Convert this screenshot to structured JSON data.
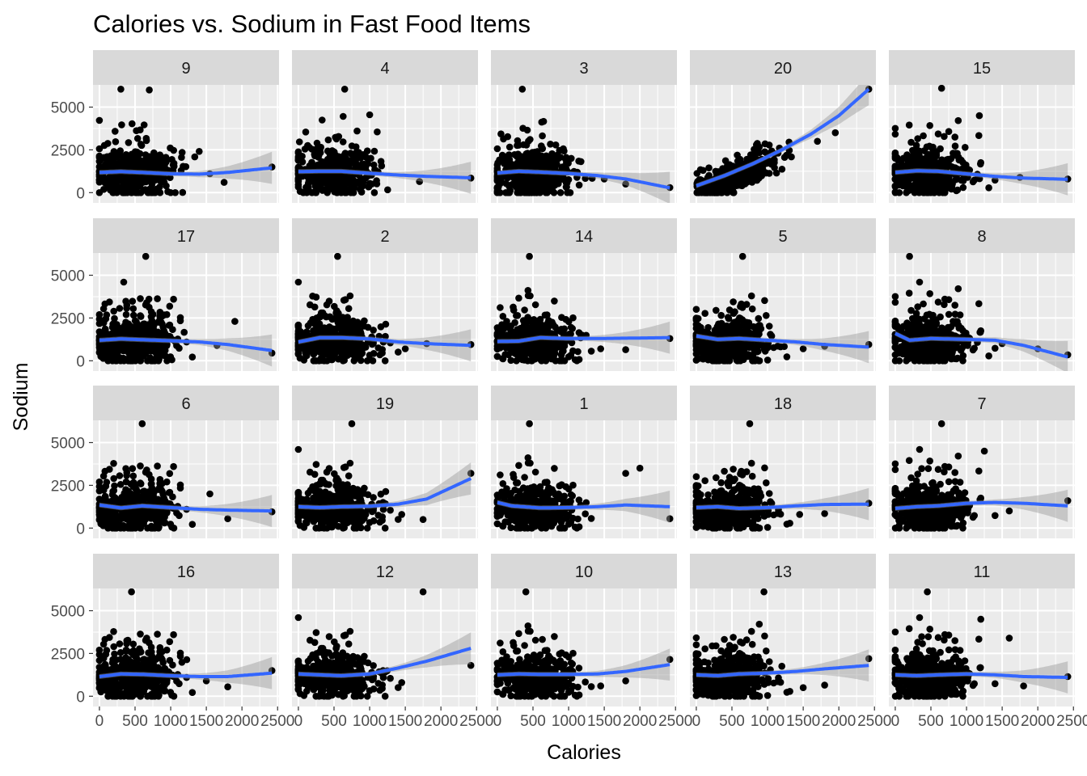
{
  "chart_data": {
    "type": "scatter",
    "title": "Calories vs. Sodium in Fast Food Items",
    "xlabel": "Calories",
    "ylabel": "Sodium",
    "xlim": [
      -90,
      2520
    ],
    "ylim": [
      -600,
      6300
    ],
    "x_ticks": [
      0,
      500,
      1000,
      1500,
      2000,
      2500
    ],
    "y_ticks": [
      0,
      2500,
      5000
    ],
    "x_tick_labels": [
      "0",
      "500",
      "1000",
      "1500",
      "2000",
      "2500"
    ],
    "y_tick_labels": [
      "0",
      "2500",
      "5000"
    ],
    "grid": true,
    "smooth": "loess with confidence band",
    "colors": {
      "panel_bg": "#ebebeb",
      "strip_bg": "#d9d9d9",
      "grid": "#ffffff",
      "points": "#000000",
      "smooth": "#3366ff",
      "band": "#999999"
    },
    "facets": [
      {
        "label": "9",
        "smooth": [
          [
            0,
            1180
          ],
          [
            300,
            1230
          ],
          [
            600,
            1180
          ],
          [
            1000,
            1100
          ],
          [
            1400,
            1080
          ],
          [
            1800,
            1180
          ],
          [
            2420,
            1450
          ]
        ],
        "outliers": [
          [
            700,
            6000
          ],
          [
            300,
            6050
          ],
          [
            1550,
            1100
          ],
          [
            1750,
            600
          ],
          [
            2420,
            1500
          ]
        ]
      },
      {
        "label": "4",
        "smooth": [
          [
            0,
            1230
          ],
          [
            300,
            1250
          ],
          [
            600,
            1250
          ],
          [
            1000,
            1130
          ],
          [
            1400,
            1030
          ],
          [
            1800,
            950
          ],
          [
            2420,
            870
          ]
        ],
        "outliers": [
          [
            650,
            6050
          ],
          [
            1000,
            4550
          ],
          [
            1700,
            650
          ],
          [
            2420,
            850
          ]
        ]
      },
      {
        "label": "3",
        "smooth": [
          [
            0,
            1150
          ],
          [
            300,
            1250
          ],
          [
            600,
            1200
          ],
          [
            1000,
            1120
          ],
          [
            1400,
            1000
          ],
          [
            1800,
            800
          ],
          [
            2420,
            280
          ]
        ],
        "outliers": [
          [
            350,
            6050
          ],
          [
            1500,
            800
          ],
          [
            1800,
            500
          ],
          [
            2420,
            300
          ]
        ]
      },
      {
        "label": "20",
        "smooth": [
          [
            0,
            400
          ],
          [
            400,
            1000
          ],
          [
            800,
            1700
          ],
          [
            1200,
            2500
          ],
          [
            1600,
            3400
          ],
          [
            2000,
            4500
          ],
          [
            2420,
            6050
          ]
        ],
        "outliers": [
          [
            2420,
            6050
          ],
          [
            1950,
            3500
          ],
          [
            1700,
            3000
          ]
        ]
      },
      {
        "label": "15",
        "smooth": [
          [
            0,
            1180
          ],
          [
            300,
            1280
          ],
          [
            600,
            1250
          ],
          [
            1000,
            1100
          ],
          [
            1400,
            950
          ],
          [
            1800,
            850
          ],
          [
            2420,
            780
          ]
        ],
        "outliers": [
          [
            650,
            6100
          ],
          [
            1180,
            4500
          ],
          [
            1750,
            900
          ],
          [
            2420,
            800
          ]
        ]
      },
      {
        "label": "17",
        "smooth": [
          [
            0,
            1200
          ],
          [
            300,
            1280
          ],
          [
            600,
            1230
          ],
          [
            1000,
            1170
          ],
          [
            1400,
            1100
          ],
          [
            1800,
            950
          ],
          [
            2420,
            600
          ]
        ],
        "outliers": [
          [
            650,
            6100
          ],
          [
            1650,
            900
          ],
          [
            1900,
            2300
          ],
          [
            2420,
            450
          ]
        ]
      },
      {
        "label": "2",
        "smooth": [
          [
            0,
            1100
          ],
          [
            300,
            1350
          ],
          [
            600,
            1350
          ],
          [
            1000,
            1280
          ],
          [
            1400,
            1100
          ],
          [
            1800,
            1000
          ],
          [
            2420,
            900
          ]
        ],
        "outliers": [
          [
            550,
            6100
          ],
          [
            1500,
            700
          ],
          [
            1800,
            1000
          ],
          [
            2420,
            950
          ]
        ]
      },
      {
        "label": "14",
        "smooth": [
          [
            0,
            1130
          ],
          [
            300,
            1150
          ],
          [
            600,
            1350
          ],
          [
            1000,
            1300
          ],
          [
            1400,
            1300
          ],
          [
            1800,
            1320
          ],
          [
            2420,
            1350
          ]
        ],
        "outliers": [
          [
            450,
            6100
          ],
          [
            1450,
            700
          ],
          [
            1800,
            650
          ],
          [
            2420,
            1300
          ]
        ]
      },
      {
        "label": "5",
        "smooth": [
          [
            0,
            1450
          ],
          [
            300,
            1250
          ],
          [
            600,
            1300
          ],
          [
            1000,
            1200
          ],
          [
            1400,
            1100
          ],
          [
            1800,
            950
          ],
          [
            2420,
            800
          ]
        ],
        "outliers": [
          [
            650,
            6100
          ],
          [
            1500,
            700
          ],
          [
            1800,
            850
          ],
          [
            2420,
            950
          ]
        ]
      },
      {
        "label": "8",
        "smooth": [
          [
            0,
            1600
          ],
          [
            200,
            1200
          ],
          [
            500,
            1300
          ],
          [
            1000,
            1250
          ],
          [
            1400,
            1200
          ],
          [
            1800,
            900
          ],
          [
            2420,
            220
          ]
        ],
        "outliers": [
          [
            200,
            6100
          ],
          [
            1500,
            1000
          ],
          [
            2000,
            700
          ],
          [
            2420,
            350
          ]
        ]
      },
      {
        "label": "6",
        "smooth": [
          [
            0,
            1350
          ],
          [
            300,
            1180
          ],
          [
            600,
            1300
          ],
          [
            1000,
            1200
          ],
          [
            1400,
            1100
          ],
          [
            1800,
            1050
          ],
          [
            2420,
            1000
          ]
        ],
        "outliers": [
          [
            600,
            6100
          ],
          [
            1550,
            2000
          ],
          [
            1800,
            550
          ],
          [
            2420,
            950
          ]
        ]
      },
      {
        "label": "19",
        "smooth": [
          [
            0,
            1250
          ],
          [
            300,
            1200
          ],
          [
            600,
            1250
          ],
          [
            1000,
            1280
          ],
          [
            1400,
            1400
          ],
          [
            1800,
            1700
          ],
          [
            2420,
            2900
          ]
        ],
        "outliers": [
          [
            750,
            6100
          ],
          [
            1450,
            800
          ],
          [
            1750,
            500
          ],
          [
            2420,
            3200
          ]
        ]
      },
      {
        "label": "1",
        "smooth": [
          [
            0,
            1500
          ],
          [
            200,
            1300
          ],
          [
            600,
            1180
          ],
          [
            1000,
            1200
          ],
          [
            1400,
            1250
          ],
          [
            1800,
            1350
          ],
          [
            2420,
            1250
          ]
        ],
        "outliers": [
          [
            450,
            6100
          ],
          [
            1800,
            3200
          ],
          [
            2000,
            3500
          ],
          [
            2420,
            550
          ]
        ]
      },
      {
        "label": "18",
        "smooth": [
          [
            0,
            1200
          ],
          [
            300,
            1250
          ],
          [
            600,
            1150
          ],
          [
            1000,
            1200
          ],
          [
            1400,
            1300
          ],
          [
            1800,
            1380
          ],
          [
            2420,
            1400
          ]
        ],
        "outliers": [
          [
            750,
            6100
          ],
          [
            1450,
            800
          ],
          [
            1800,
            850
          ],
          [
            2420,
            1450
          ]
        ]
      },
      {
        "label": "7",
        "smooth": [
          [
            0,
            1150
          ],
          [
            300,
            1250
          ],
          [
            600,
            1300
          ],
          [
            1000,
            1450
          ],
          [
            1400,
            1500
          ],
          [
            1800,
            1450
          ],
          [
            2420,
            1300
          ]
        ],
        "outliers": [
          [
            650,
            6100
          ],
          [
            1250,
            4500
          ],
          [
            1600,
            1000
          ],
          [
            2420,
            1600
          ]
        ]
      },
      {
        "label": "16",
        "smooth": [
          [
            0,
            1150
          ],
          [
            300,
            1300
          ],
          [
            600,
            1280
          ],
          [
            1000,
            1200
          ],
          [
            1400,
            1150
          ],
          [
            1800,
            1150
          ],
          [
            2420,
            1350
          ]
        ],
        "outliers": [
          [
            450,
            6100
          ],
          [
            1500,
            900
          ],
          [
            1800,
            550
          ],
          [
            2420,
            1500
          ]
        ]
      },
      {
        "label": "12",
        "smooth": [
          [
            0,
            1300
          ],
          [
            300,
            1250
          ],
          [
            600,
            1200
          ],
          [
            1000,
            1300
          ],
          [
            1400,
            1650
          ],
          [
            1800,
            2050
          ],
          [
            2420,
            2800
          ]
        ],
        "outliers": [
          [
            1750,
            6100
          ],
          [
            1450,
            800
          ],
          [
            2420,
            1800
          ]
        ]
      },
      {
        "label": "10",
        "smooth": [
          [
            0,
            1250
          ],
          [
            300,
            1300
          ],
          [
            600,
            1280
          ],
          [
            1000,
            1280
          ],
          [
            1400,
            1300
          ],
          [
            1800,
            1450
          ],
          [
            2420,
            1850
          ]
        ],
        "outliers": [
          [
            400,
            6100
          ],
          [
            1450,
            600
          ],
          [
            1800,
            900
          ],
          [
            2420,
            2150
          ]
        ]
      },
      {
        "label": "13",
        "smooth": [
          [
            0,
            1250
          ],
          [
            300,
            1200
          ],
          [
            600,
            1300
          ],
          [
            1000,
            1350
          ],
          [
            1400,
            1450
          ],
          [
            1800,
            1600
          ],
          [
            2420,
            1800
          ]
        ],
        "outliers": [
          [
            950,
            6100
          ],
          [
            1500,
            500
          ],
          [
            1800,
            650
          ],
          [
            2420,
            2200
          ]
        ]
      },
      {
        "label": "11",
        "smooth": [
          [
            0,
            1250
          ],
          [
            300,
            1200
          ],
          [
            600,
            1250
          ],
          [
            1000,
            1300
          ],
          [
            1400,
            1250
          ],
          [
            1800,
            1150
          ],
          [
            2420,
            1100
          ]
        ],
        "outliers": [
          [
            450,
            6100
          ],
          [
            1200,
            4500
          ],
          [
            1600,
            3400
          ],
          [
            1800,
            600
          ],
          [
            2420,
            1150
          ]
        ]
      }
    ]
  }
}
